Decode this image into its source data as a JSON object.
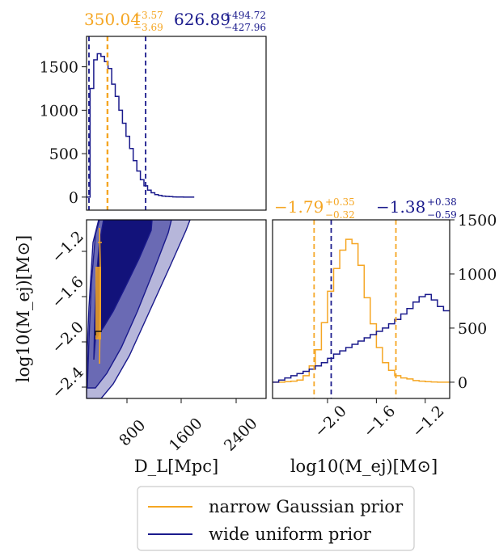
{
  "colors": {
    "narrow": "#F5A623",
    "wide": "#1A1A8C",
    "fill_dark": "#12127A",
    "fill_mid": "#6A6AB4",
    "fill_light": "#B6B6DA"
  },
  "chart_data": [
    {
      "type": "histogram",
      "panel": "D_L marginal",
      "ylim": [
        -150,
        1850
      ],
      "y_ticks": [
        "0",
        "500",
        "1000",
        "1500"
      ],
      "x_range_mpc": [
        200,
        3000
      ],
      "narrow_annotation": {
        "value": "350.04",
        "plus": "+3.57",
        "minus": "−3.69"
      },
      "wide_annotation": {
        "value": "626.89",
        "plus": "+494.72",
        "minus": "−427.96"
      },
      "narrow_quantile_lines_mpc": [
        346.35,
        353.61
      ],
      "wide_quantile_lines_mpc": [
        198.93,
        1121.61
      ],
      "wide_hist": {
        "edges": [
          200,
          256,
          312,
          368,
          424,
          480,
          536,
          592,
          648,
          704,
          760,
          816,
          872,
          928,
          984,
          1040,
          1096,
          1152,
          1208,
          1264,
          1320,
          1376,
          1432,
          1488,
          1544,
          1600,
          1656,
          1712,
          1768,
          1824,
          1880
        ],
        "values": [
          0,
          1250,
          1580,
          1650,
          1620,
          1560,
          1480,
          1300,
          1160,
          1000,
          850,
          700,
          560,
          420,
          300,
          200,
          130,
          80,
          50,
          30,
          20,
          12,
          8,
          5,
          3,
          2,
          1,
          0,
          0,
          0
        ]
      }
    },
    {
      "type": "contour",
      "panel": "joint D_L vs log10 M_ej",
      "x_ticks": [
        "800",
        "1600",
        "2400"
      ],
      "y_ticks": [
        "−1.2",
        "−1.6",
        "−2.0",
        "−2.4"
      ],
      "xlabel": "D_L[Mpc]",
      "ylabel": "log10(M_ej)[M⊙]",
      "xlim": [
        200,
        3000
      ],
      "ylim": [
        -2.55,
        -0.95
      ]
    },
    {
      "type": "histogram",
      "panel": "log10 M_ej marginal",
      "xlim": [
        -2.45,
        -1.0
      ],
      "ylim": [
        -150,
        1500
      ],
      "x_ticks": [
        "−2.0",
        "−1.6",
        "−1.2"
      ],
      "y_ticks": [
        "0",
        "500",
        "1000",
        "1500"
      ],
      "xlabel": "log10(M_ej)[M⊙]",
      "narrow_annotation": {
        "value": "−1.79",
        "plus": "+0.35",
        "minus": "−0.32"
      },
      "wide_annotation": {
        "value": "−1.38",
        "plus": "+0.38",
        "minus": "−0.59"
      },
      "narrow_quantile_lines": [
        -2.11,
        -1.44
      ],
      "wide_quantile_lines": [
        -1.97
      ],
      "narrow_hist": {
        "edges": [
          -2.45,
          -2.4,
          -2.35,
          -2.3,
          -2.25,
          -2.2,
          -2.15,
          -2.1,
          -2.05,
          -2.0,
          -1.95,
          -1.9,
          -1.85,
          -1.8,
          -1.75,
          -1.7,
          -1.65,
          -1.6,
          -1.55,
          -1.5,
          -1.45,
          -1.4,
          -1.35,
          -1.3,
          -1.25,
          -1.2,
          -1.15,
          -1.1,
          -1.05,
          -1.0
        ],
        "values": [
          0,
          0,
          5,
          10,
          20,
          60,
          150,
          300,
          550,
          840,
          1050,
          1220,
          1320,
          1280,
          1080,
          780,
          540,
          320,
          180,
          110,
          60,
          40,
          30,
          15,
          10,
          5,
          2,
          0,
          0
        ]
      },
      "wide_hist": {
        "edges": [
          -2.45,
          -2.4,
          -2.35,
          -2.3,
          -2.25,
          -2.2,
          -2.15,
          -2.1,
          -2.05,
          -2.0,
          -1.95,
          -1.9,
          -1.85,
          -1.8,
          -1.75,
          -1.7,
          -1.65,
          -1.6,
          -1.55,
          -1.5,
          -1.45,
          -1.4,
          -1.35,
          -1.3,
          -1.25,
          -1.2,
          -1.15,
          -1.1,
          -1.05,
          -1.0
        ],
        "values": [
          0,
          20,
          40,
          60,
          80,
          100,
          120,
          150,
          180,
          220,
          260,
          290,
          320,
          350,
          380,
          410,
          440,
          470,
          500,
          540,
          580,
          630,
          680,
          740,
          790,
          810,
          760,
          700,
          660
        ]
      }
    }
  ],
  "legend": {
    "items": [
      {
        "label": "narrow Gaussian prior",
        "color_key": "narrow"
      },
      {
        "label": "wide uniform prior",
        "color_key": "wide"
      }
    ]
  }
}
